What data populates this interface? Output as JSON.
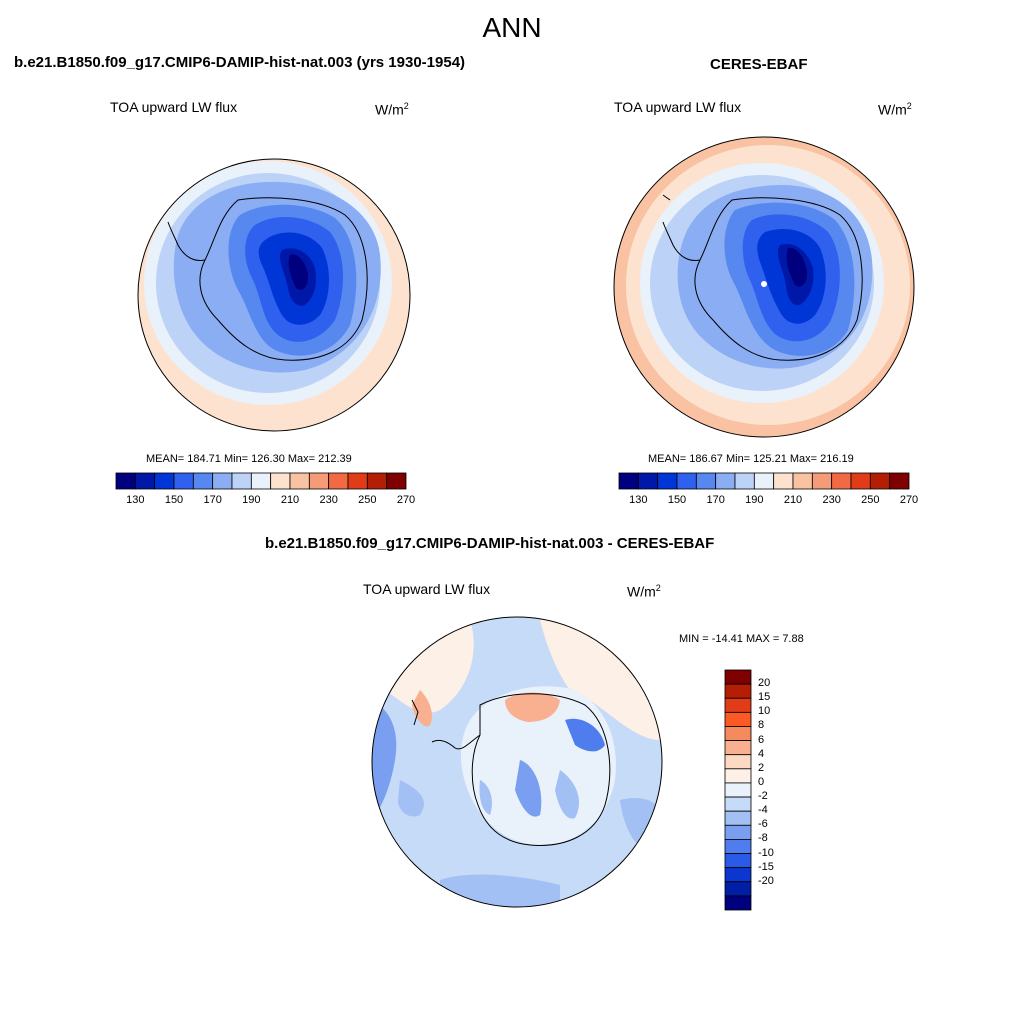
{
  "figure": {
    "title": "ANN"
  },
  "panels": {
    "model": {
      "title": "b.e21.B1850.f09_g17.CMIP6-DAMIP-hist-nat.003 (yrs 1930-1954)",
      "variable": "TOA upward LW flux",
      "units": "W/m",
      "units_exp": "2",
      "stats": "MEAN= 184.71  Min= 126.30  Max= 212.39"
    },
    "obs": {
      "title": "CERES-EBAF",
      "variable": "TOA upward LW flux",
      "units": "W/m",
      "units_exp": "2",
      "stats": "MEAN= 186.67  Min= 125.21  Max= 216.19"
    },
    "diff": {
      "title": "b.e21.B1850.f09_g17.CMIP6-DAMIP-hist-nat.003 - CERES-EBAF",
      "variable": "TOA upward LW flux",
      "units": "W/m",
      "units_exp": "2",
      "stats": "MIN = -14.41 MAX =   7.88"
    }
  },
  "colorbar_abs": {
    "colors": [
      "#00007f",
      "#0018a8",
      "#0035d6",
      "#2f60ee",
      "#5688f0",
      "#8aadf3",
      "#bcd3f7",
      "#e9f1fb",
      "#fde3cf",
      "#f8c2a3",
      "#f59b77",
      "#f26a43",
      "#e03c17",
      "#b41e05",
      "#7f0000"
    ],
    "ticks": [
      "130",
      "150",
      "170",
      "190",
      "210",
      "230",
      "250",
      "270"
    ]
  },
  "colorbar_diff": {
    "colors": [
      "#7f0000",
      "#b41e05",
      "#e03c17",
      "#fb5a25",
      "#f58a5c",
      "#f8b090",
      "#fcd9c2",
      "#fdf0e6",
      "#e9f1fb",
      "#c6dbf7",
      "#a3c0f4",
      "#7a9ff0",
      "#4f7dee",
      "#2a5ae8",
      "#0c36d0",
      "#001ea6",
      "#00007f"
    ],
    "labels": [
      "20",
      "15",
      "10",
      "8",
      "6",
      "4",
      "2",
      "0",
      "-2",
      "-4",
      "-6",
      "-8",
      "-10",
      "-15",
      "-20"
    ]
  },
  "chart_data": [
    {
      "type": "heatmap",
      "title": "TOA upward LW flux",
      "projection": "south polar stereographic",
      "units": "W/m2",
      "levels": [
        130,
        140,
        150,
        160,
        170,
        180,
        190,
        200,
        210,
        220,
        230,
        240,
        250,
        260,
        270
      ],
      "mean": 184.71,
      "min": 126.3,
      "max": 212.39
    },
    {
      "type": "heatmap",
      "title": "TOA upward LW flux",
      "projection": "south polar stereographic",
      "units": "W/m2",
      "levels": [
        130,
        140,
        150,
        160,
        170,
        180,
        190,
        200,
        210,
        220,
        230,
        240,
        250,
        260,
        270
      ],
      "mean": 186.67,
      "min": 125.21,
      "max": 216.19
    },
    {
      "type": "heatmap",
      "title": "TOA upward LW flux",
      "projection": "south polar stereographic",
      "units": "W/m2",
      "levels": [
        -20,
        -15,
        -10,
        -8,
        -6,
        -4,
        -2,
        0,
        2,
        4,
        6,
        8,
        10,
        15,
        20
      ],
      "min": -14.41,
      "max": 7.88
    }
  ]
}
